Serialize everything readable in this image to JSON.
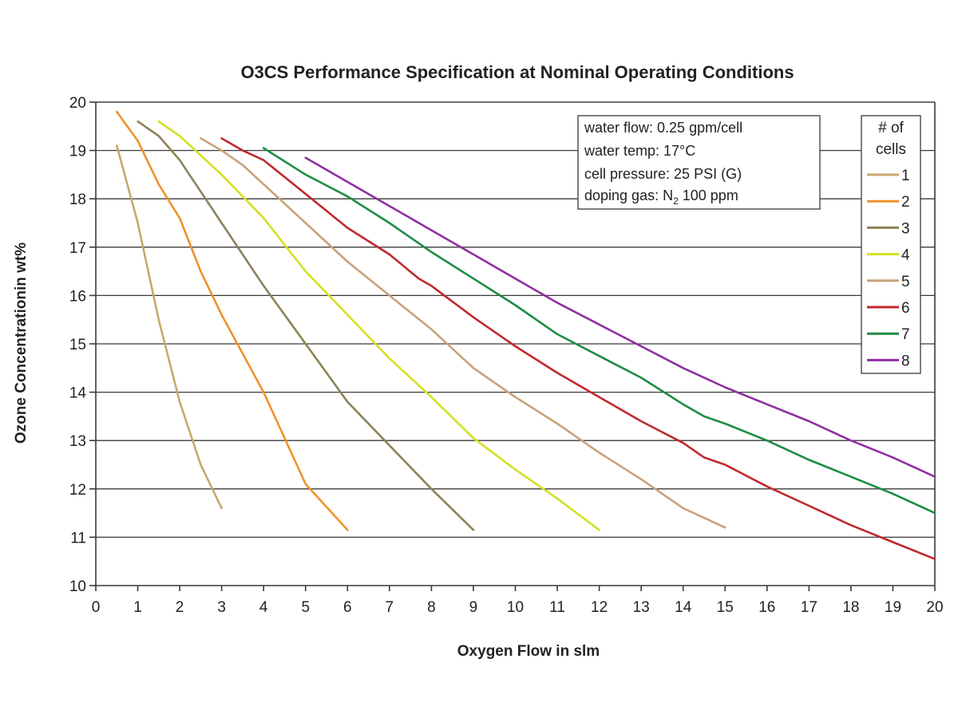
{
  "chart_data": {
    "type": "line",
    "title": "O3CS Performance Specification at Nominal Operating Conditions",
    "xlabel": "Oxygen Flow in slm",
    "ylabel": "Ozone Concentrationin wt%",
    "xlim": [
      0,
      20
    ],
    "ylim": [
      10,
      20
    ],
    "xticks": [
      0,
      1,
      2,
      3,
      4,
      5,
      6,
      7,
      8,
      9,
      10,
      11,
      12,
      13,
      14,
      15,
      16,
      17,
      18,
      19,
      20
    ],
    "yticks": [
      10,
      11,
      12,
      13,
      14,
      15,
      16,
      17,
      18,
      19,
      20
    ],
    "grid": "horizontal",
    "legend": {
      "title_line1": "# of",
      "title_line2": "cells",
      "placement": "top-right"
    },
    "annotation": {
      "lines": [
        {
          "text": "water flow: 0.25 gpm/cell"
        },
        {
          "text": "water temp: 17°C"
        },
        {
          "text": "cell pressure: 25 PSI (G)"
        },
        {
          "text": "doping gas: N",
          "sub": "2",
          "after": " 100 ppm"
        }
      ]
    },
    "series": [
      {
        "name": "1",
        "color": "#c8a86b",
        "points": [
          [
            0.5,
            19.1
          ],
          [
            1,
            17.5
          ],
          [
            1.5,
            15.5
          ],
          [
            2,
            13.8
          ],
          [
            2.5,
            12.5
          ],
          [
            3,
            11.6
          ]
        ]
      },
      {
        "name": "2",
        "color": "#f0922a",
        "points": [
          [
            0.5,
            19.8
          ],
          [
            1,
            19.2
          ],
          [
            1.5,
            18.3
          ],
          [
            2,
            17.6
          ],
          [
            2.5,
            16.5
          ],
          [
            3,
            15.6
          ],
          [
            4,
            14.0
          ],
          [
            5,
            12.1
          ],
          [
            6,
            11.15
          ]
        ]
      },
      {
        "name": "3",
        "color": "#8c8356",
        "points": [
          [
            1,
            19.6
          ],
          [
            1.5,
            19.3
          ],
          [
            2,
            18.8
          ],
          [
            3,
            17.5
          ],
          [
            4,
            16.2
          ],
          [
            5,
            15.0
          ],
          [
            6,
            13.8
          ],
          [
            7,
            12.9
          ],
          [
            8,
            12.0
          ],
          [
            9,
            11.15
          ]
        ]
      },
      {
        "name": "4",
        "color": "#d4e021",
        "points": [
          [
            1.5,
            19.6
          ],
          [
            2,
            19.3
          ],
          [
            3,
            18.5
          ],
          [
            4,
            17.6
          ],
          [
            5,
            16.5
          ],
          [
            6,
            15.6
          ],
          [
            7,
            14.7
          ],
          [
            8,
            13.9
          ],
          [
            9,
            13.05
          ],
          [
            10,
            12.4
          ],
          [
            11,
            11.8
          ],
          [
            12,
            11.15
          ]
        ]
      },
      {
        "name": "5",
        "color": "#c9a27a",
        "points": [
          [
            2.5,
            19.25
          ],
          [
            3,
            19.0
          ],
          [
            3.5,
            18.7
          ],
          [
            4,
            18.3
          ],
          [
            5,
            17.5
          ],
          [
            6,
            16.7
          ],
          [
            7,
            16.0
          ],
          [
            8,
            15.3
          ],
          [
            9,
            14.5
          ],
          [
            10,
            13.9
          ],
          [
            11,
            13.35
          ],
          [
            12,
            12.75
          ],
          [
            13,
            12.2
          ],
          [
            14,
            11.6
          ],
          [
            15,
            11.2
          ]
        ]
      },
      {
        "name": "6",
        "color": "#c0282e",
        "points": [
          [
            3,
            19.25
          ],
          [
            3.5,
            19.0
          ],
          [
            4,
            18.8
          ],
          [
            5,
            18.1
          ],
          [
            6,
            17.4
          ],
          [
            7,
            16.85
          ],
          [
            7.7,
            16.35
          ],
          [
            8,
            16.2
          ],
          [
            9,
            15.55
          ],
          [
            10,
            14.95
          ],
          [
            11,
            14.4
          ],
          [
            12,
            13.9
          ],
          [
            13,
            13.4
          ],
          [
            14,
            12.95
          ],
          [
            14.5,
            12.65
          ],
          [
            15,
            12.5
          ],
          [
            16,
            12.05
          ],
          [
            17,
            11.65
          ],
          [
            18,
            11.25
          ],
          [
            19,
            10.9
          ],
          [
            20,
            10.55
          ]
        ]
      },
      {
        "name": "7",
        "color": "#1e8c45",
        "points": [
          [
            4,
            19.05
          ],
          [
            5,
            18.5
          ],
          [
            6,
            18.05
          ],
          [
            7,
            17.5
          ],
          [
            8,
            16.9
          ],
          [
            9,
            16.35
          ],
          [
            10,
            15.8
          ],
          [
            11,
            15.2
          ],
          [
            12,
            14.75
          ],
          [
            13,
            14.3
          ],
          [
            14,
            13.75
          ],
          [
            14.5,
            13.5
          ],
          [
            15,
            13.35
          ],
          [
            16,
            13.0
          ],
          [
            17,
            12.6
          ],
          [
            18,
            12.25
          ],
          [
            19,
            11.9
          ],
          [
            20,
            11.5
          ]
        ]
      },
      {
        "name": "8",
        "color": "#8e2fa0",
        "points": [
          [
            5,
            18.85
          ],
          [
            6,
            18.35
          ],
          [
            7,
            17.85
          ],
          [
            8,
            17.35
          ],
          [
            9,
            16.85
          ],
          [
            10,
            16.35
          ],
          [
            11,
            15.85
          ],
          [
            12,
            15.4
          ],
          [
            13,
            14.95
          ],
          [
            14,
            14.5
          ],
          [
            15,
            14.1
          ],
          [
            16,
            13.75
          ],
          [
            17,
            13.4
          ],
          [
            18,
            13.0
          ],
          [
            19,
            12.65
          ],
          [
            20,
            12.25
          ]
        ]
      }
    ]
  }
}
